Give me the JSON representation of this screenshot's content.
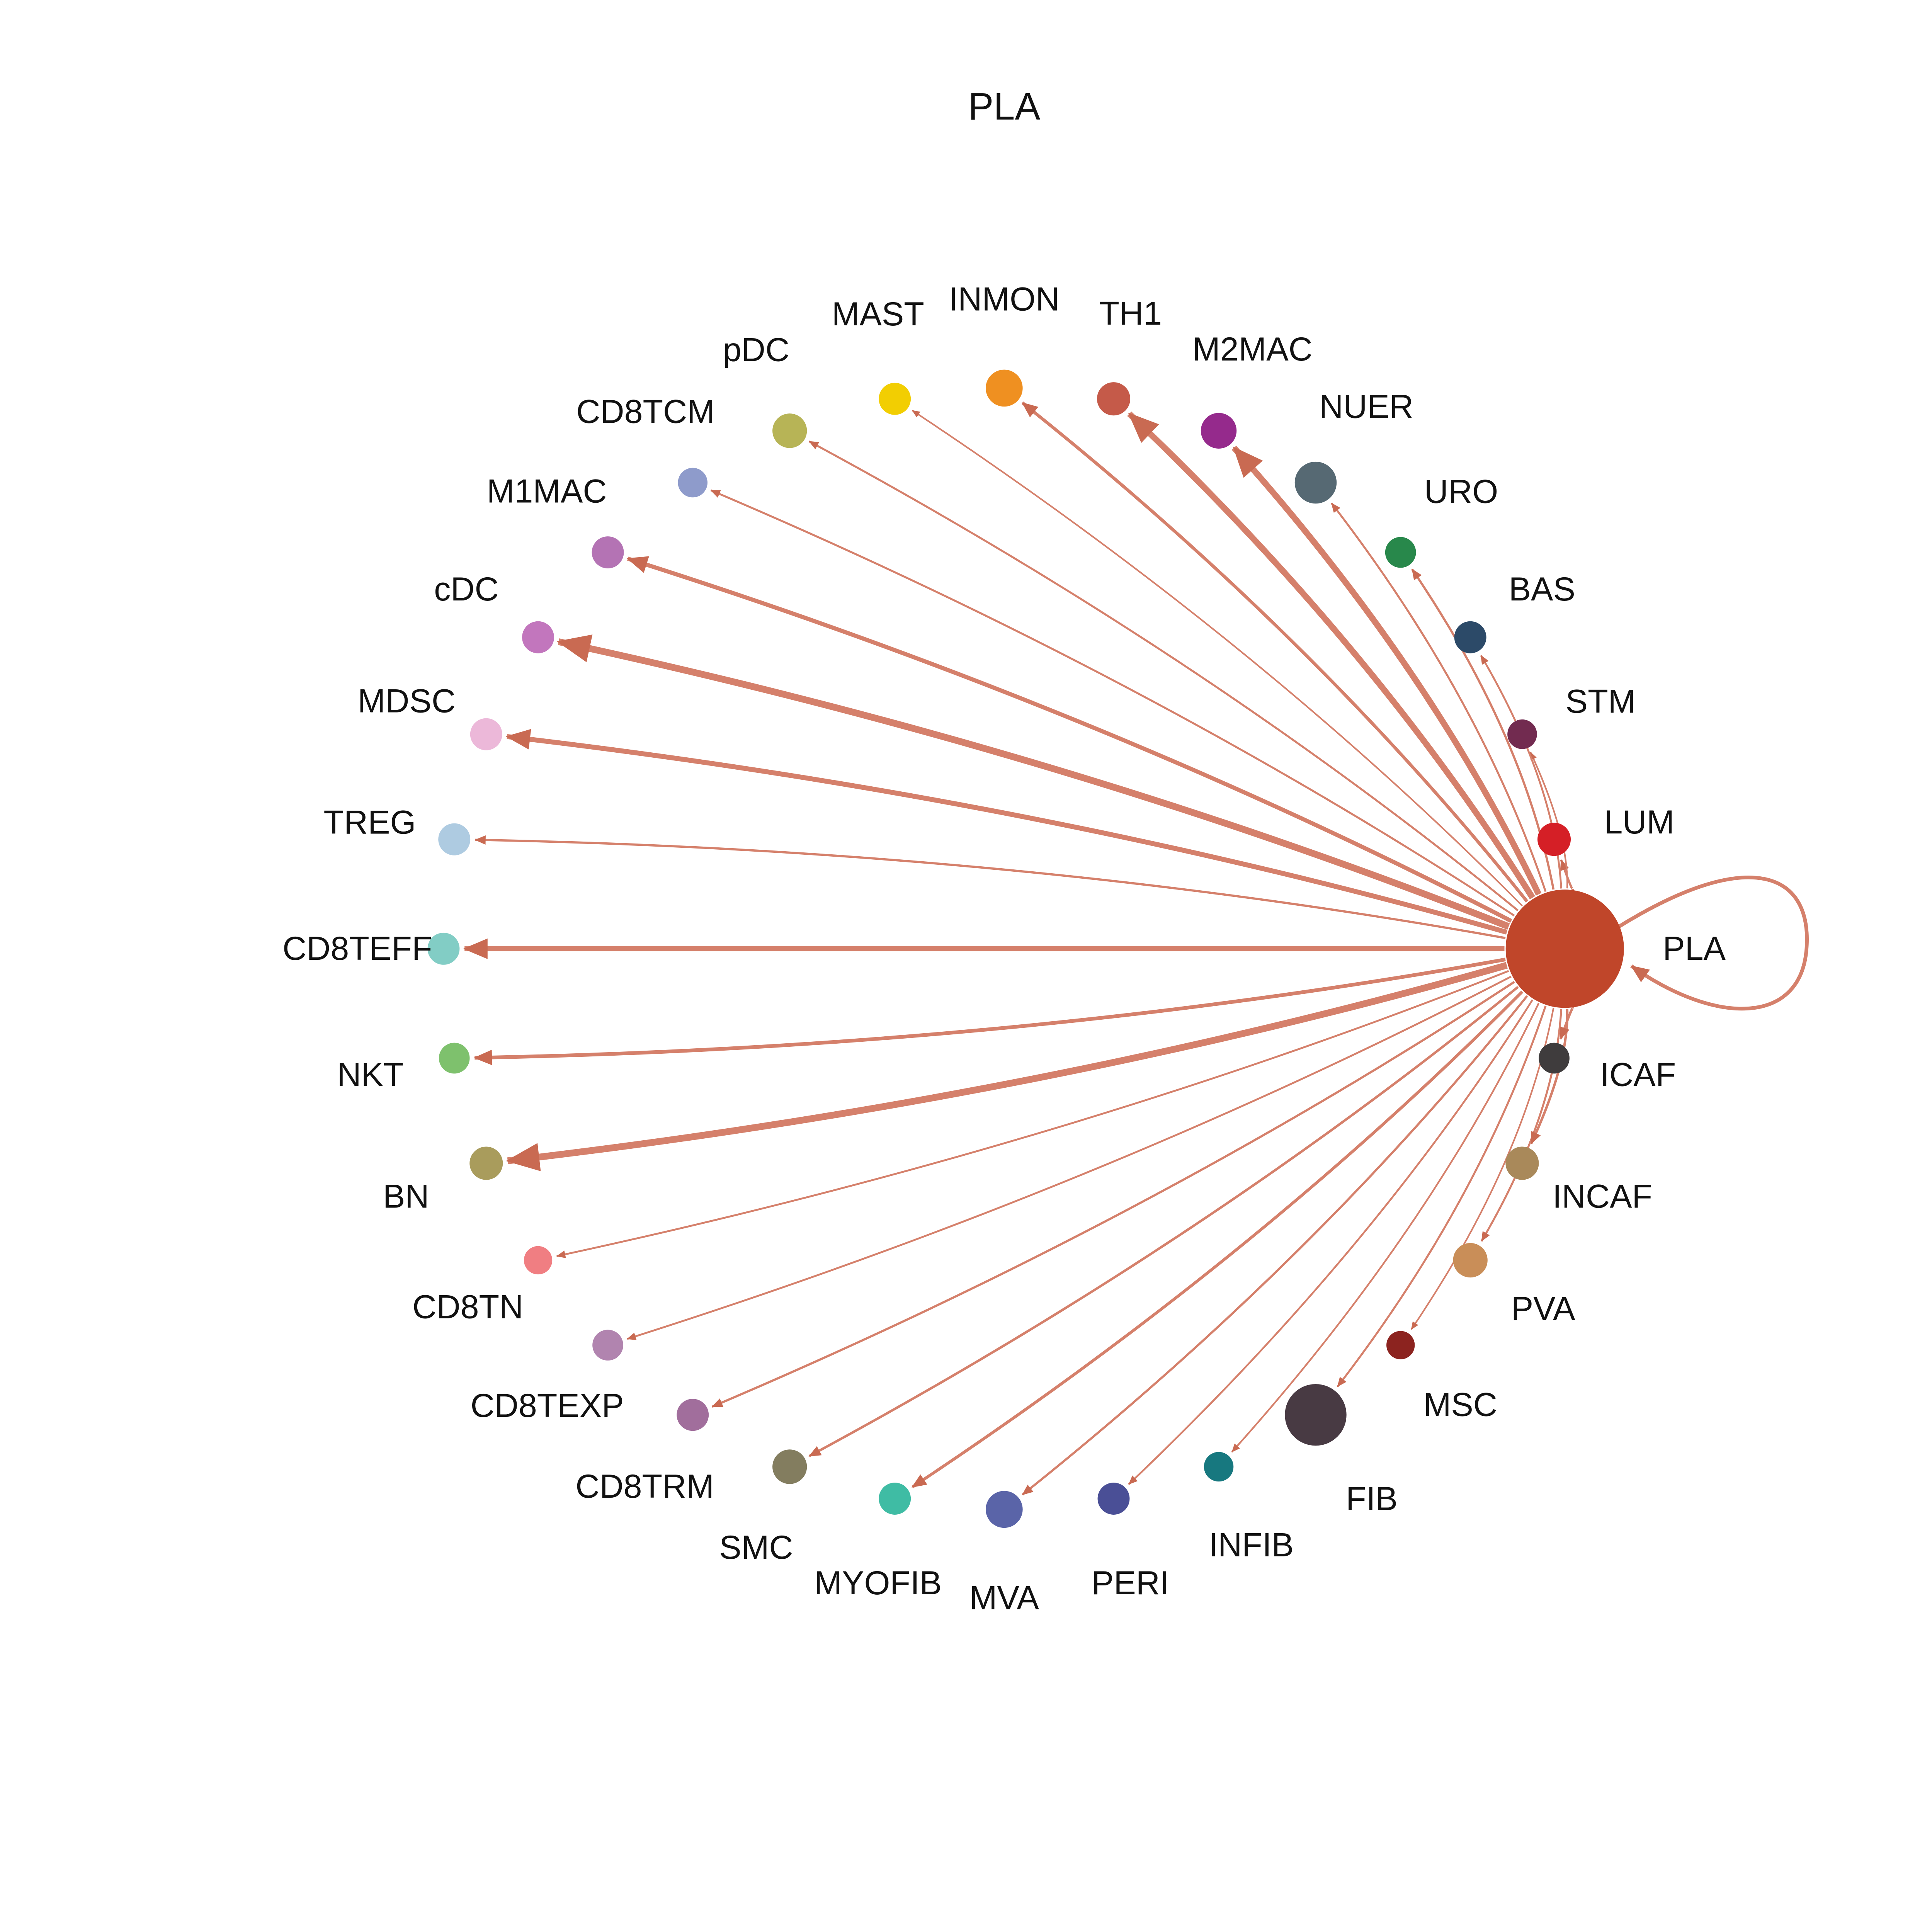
{
  "title": "PLA",
  "background_color": "#ffffff",
  "network": {
    "type": "directed-graph",
    "layout": "circle",
    "description_visible_elements": "hub node PLA sends one directed edge to every peripheral node and one self-loop",
    "edge_color": "#d5806b",
    "arrow_color": "#c96a52",
    "label_color": "#111111",
    "hub": {
      "label": "PLA",
      "color": "#c0462a",
      "radius": 48,
      "angle_deg": 0,
      "self_loop": true,
      "self_loop_width": 3
    },
    "nodes": [
      {
        "label": "LUM",
        "angle_deg": 11.25,
        "color": "#d51f26",
        "radius": 13.5,
        "edge_width": 1.8
      },
      {
        "label": "STM",
        "angle_deg": 22.5,
        "color": "#722b50",
        "radius": 12,
        "edge_width": 1.3
      },
      {
        "label": "BAS",
        "angle_deg": 33.75,
        "color": "#2c4a68",
        "radius": 13,
        "edge_width": 1.5
      },
      {
        "label": "URO",
        "angle_deg": 45,
        "color": "#28884b",
        "radius": 12.5,
        "edge_width": 1.8
      },
      {
        "label": "NUER",
        "angle_deg": 56.25,
        "color": "#566973",
        "radius": 17,
        "edge_width": 1.6
      },
      {
        "label": "M2MAC",
        "angle_deg": 67.5,
        "color": "#952a8c",
        "radius": 14.5,
        "edge_width": 5.0
      },
      {
        "label": "TH1",
        "angle_deg": 78.75,
        "color": "#c55a49",
        "radius": 13.5,
        "edge_width": 5.0
      },
      {
        "label": "INMON",
        "angle_deg": 90,
        "color": "#ef9021",
        "radius": 15,
        "edge_width": 2.6
      },
      {
        "label": "MAST",
        "angle_deg": 101.25,
        "color": "#f2ce02",
        "radius": 13,
        "edge_width": 1.3
      },
      {
        "label": "pDC",
        "angle_deg": 112.5,
        "color": "#b7b456",
        "radius": 14,
        "edge_width": 1.6
      },
      {
        "label": "CD8TCM",
        "angle_deg": 123.75,
        "color": "#8e9bcb",
        "radius": 12,
        "edge_width": 1.6
      },
      {
        "label": "M1MAC",
        "angle_deg": 135,
        "color": "#b473b4",
        "radius": 13,
        "edge_width": 3.4
      },
      {
        "label": "cDC",
        "angle_deg": 146.25,
        "color": "#c276bd",
        "radius": 13,
        "edge_width": 5.5
      },
      {
        "label": "MDSC",
        "angle_deg": 157.5,
        "color": "#ecb8d9",
        "radius": 13,
        "edge_width": 4.0
      },
      {
        "label": "TREG",
        "angle_deg": 168.75,
        "color": "#aecbe1",
        "radius": 13,
        "edge_width": 1.8
      },
      {
        "label": "CD8TEFF",
        "angle_deg": 180,
        "color": "#82cdc5",
        "radius": 13,
        "edge_width": 4.0
      },
      {
        "label": "NKT",
        "angle_deg": 191.25,
        "color": "#7ec16d",
        "radius": 12.5,
        "edge_width": 3.0
      },
      {
        "label": "BN",
        "angle_deg": 202.5,
        "color": "#a99c5c",
        "radius": 13.5,
        "edge_width": 5.5
      },
      {
        "label": "CD8TN",
        "angle_deg": 213.75,
        "color": "#f07e82",
        "radius": 11.5,
        "edge_width": 1.5
      },
      {
        "label": "CD8TEXP",
        "angle_deg": 225,
        "color": "#b184af",
        "radius": 12.5,
        "edge_width": 1.5
      },
      {
        "label": "CD8TRM",
        "angle_deg": 236.25,
        "color": "#a16e9c",
        "radius": 13,
        "edge_width": 1.8
      },
      {
        "label": "SMC",
        "angle_deg": 247.5,
        "color": "#837d5f",
        "radius": 14,
        "edge_width": 2.0
      },
      {
        "label": "MYOFIB",
        "angle_deg": 258.75,
        "color": "#3fbca4",
        "radius": 13,
        "edge_width": 2.4
      },
      {
        "label": "MVA",
        "angle_deg": 270,
        "color": "#5a64a8",
        "radius": 15,
        "edge_width": 1.8
      },
      {
        "label": "PERI",
        "angle_deg": 281.25,
        "color": "#4a4f96",
        "radius": 13,
        "edge_width": 1.5
      },
      {
        "label": "INFIB",
        "angle_deg": 292.5,
        "color": "#17787f",
        "radius": 12,
        "edge_width": 1.4
      },
      {
        "label": "FIB",
        "angle_deg": 303.75,
        "color": "#483a43",
        "radius": 25,
        "edge_width": 1.6
      },
      {
        "label": "MSC",
        "angle_deg": 315,
        "color": "#8c231f",
        "radius": 11.5,
        "edge_width": 1.3
      },
      {
        "label": "PVA",
        "angle_deg": 326.25,
        "color": "#c98e58",
        "radius": 14,
        "edge_width": 1.6
      },
      {
        "label": "INCAF",
        "angle_deg": 337.5,
        "color": "#a9895a",
        "radius": 13.5,
        "edge_width": 2.0
      },
      {
        "label": "ICAF",
        "angle_deg": 348.75,
        "color": "#3f3c3d",
        "radius": 12.5,
        "edge_width": 2.0
      }
    ]
  }
}
